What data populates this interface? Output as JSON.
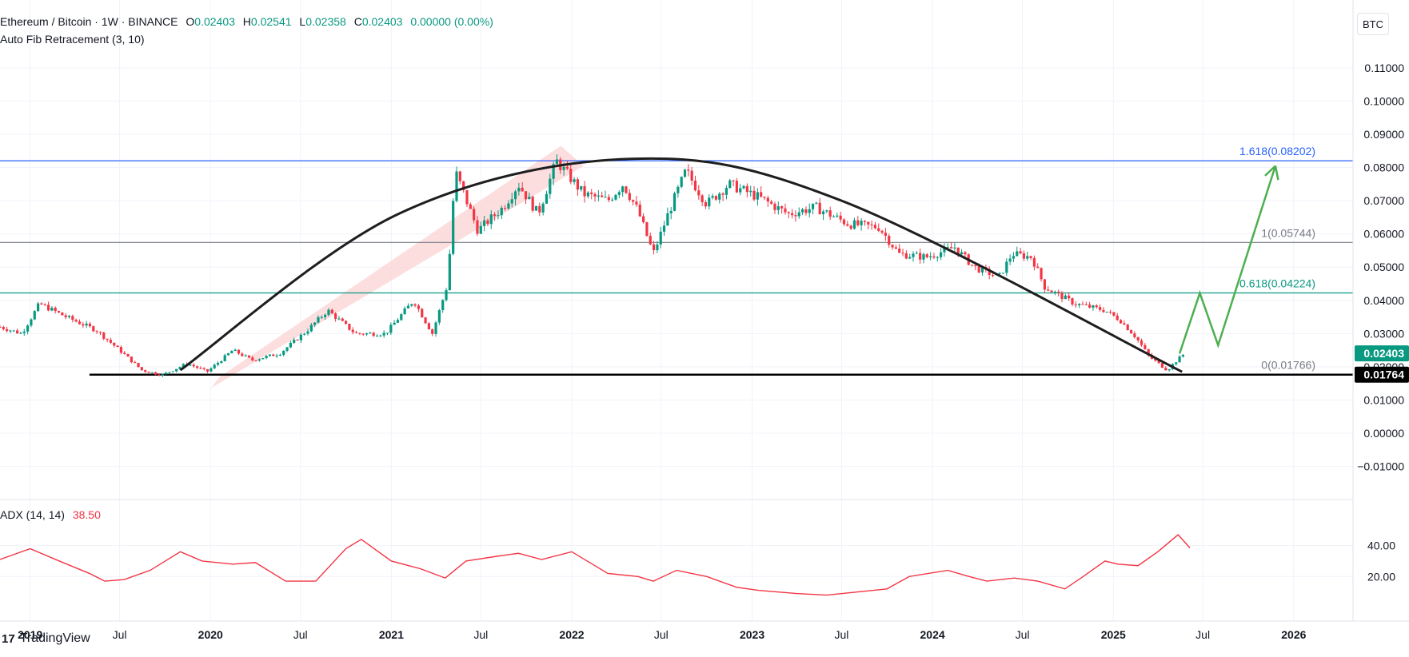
{
  "legend": {
    "symbol": "Ethereum / Bitcoin · 1W · BINANCE",
    "o_label": "O",
    "o_value": "0.02403",
    "h_label": "H",
    "h_value": "0.02541",
    "l_label": "L",
    "l_value": "0.02358",
    "c_label": "C",
    "c_value": "0.02403",
    "change": "0.00000 (0.00%)",
    "indicator": "Auto Fib Retracement (3, 10)"
  },
  "adx_legend": {
    "name": "ADX (14, 14)",
    "value": "38.50"
  },
  "currency_button": "BTC",
  "brand": {
    "logo": "17",
    "name": "TradingView"
  },
  "colors": {
    "up": "#089981",
    "down": "#f23645",
    "fib_1618": "#2962ff",
    "fib_1": "#787b86",
    "fib_0618": "#089981",
    "projection": "#4caf50",
    "adx": "#f23645",
    "channel": "#fbd3d3"
  },
  "chart_data": [
    {
      "type": "candlestick",
      "title": "Ethereum / Bitcoin · 1W · BINANCE",
      "y_axis_ticks": [
        "0.11000",
        "0.10000",
        "0.09000",
        "0.08000",
        "0.07000",
        "0.06000",
        "0.05000",
        "0.04000",
        "0.03000",
        "0.02000",
        "0.01000",
        "0.00000",
        "−0.01000"
      ],
      "ylim": [
        -0.0125,
        0.1155
      ],
      "x_axis_ticks": [
        "2019",
        "Jul",
        "2020",
        "Jul",
        "2021",
        "Jul",
        "2022",
        "Jul",
        "2023",
        "Jul",
        "2024",
        "Jul",
        "2025",
        "Jul",
        "2026"
      ],
      "xlim": [
        "2018-11-01",
        "2026-05-01"
      ],
      "price_series": [
        [
          "2018-11-01",
          0.032
        ],
        [
          "2018-12-15",
          0.03
        ],
        [
          "2019-01-20",
          0.039
        ],
        [
          "2019-03-15",
          0.035
        ],
        [
          "2019-05-15",
          0.031
        ],
        [
          "2019-07-01",
          0.025
        ],
        [
          "2019-08-15",
          0.019
        ],
        [
          "2019-09-25",
          0.0175
        ],
        [
          "2019-11-15",
          0.021
        ],
        [
          "2019-12-25",
          0.0185
        ],
        [
          "2020-02-15",
          0.025
        ],
        [
          "2020-03-25",
          0.022
        ],
        [
          "2020-05-20",
          0.024
        ],
        [
          "2020-07-15",
          0.031
        ],
        [
          "2020-08-25",
          0.037
        ],
        [
          "2020-10-20",
          0.03
        ],
        [
          "2020-12-20",
          0.03
        ],
        [
          "2021-02-15",
          0.04
        ],
        [
          "2021-03-25",
          0.03
        ],
        [
          "2021-04-25",
          0.045
        ],
        [
          "2021-05-10",
          0.079
        ],
        [
          "2021-06-25",
          0.061
        ],
        [
          "2021-08-15",
          0.068
        ],
        [
          "2021-09-15",
          0.075
        ],
        [
          "2021-10-25",
          0.066
        ],
        [
          "2021-12-01",
          0.082
        ],
        [
          "2022-01-25",
          0.072
        ],
        [
          "2022-03-15",
          0.07
        ],
        [
          "2022-04-15",
          0.075
        ],
        [
          "2022-05-15",
          0.067
        ],
        [
          "2022-06-15",
          0.054
        ],
        [
          "2022-07-15",
          0.066
        ],
        [
          "2022-08-20",
          0.079
        ],
        [
          "2022-10-01",
          0.069
        ],
        [
          "2022-11-15",
          0.075
        ],
        [
          "2023-01-15",
          0.071
        ],
        [
          "2023-03-15",
          0.066
        ],
        [
          "2023-05-10",
          0.068
        ],
        [
          "2023-07-15",
          0.063
        ],
        [
          "2023-09-15",
          0.062
        ],
        [
          "2023-10-25",
          0.054
        ],
        [
          "2023-12-20",
          0.053
        ],
        [
          "2024-02-15",
          0.056
        ],
        [
          "2024-03-25",
          0.05
        ],
        [
          "2024-05-15",
          0.047
        ],
        [
          "2024-06-10",
          0.054
        ],
        [
          "2024-07-20",
          0.053
        ],
        [
          "2024-08-15",
          0.044
        ],
        [
          "2024-10-15",
          0.039
        ],
        [
          "2024-12-15",
          0.037
        ],
        [
          "2025-01-15",
          0.034
        ],
        [
          "2025-02-15",
          0.029
        ],
        [
          "2025-03-15",
          0.023
        ],
        [
          "2025-04-20",
          0.019
        ],
        [
          "2025-05-10",
          0.022
        ],
        [
          "2025-05-25",
          0.024
        ]
      ],
      "last_price": "0.02403",
      "support_level": "0.01764",
      "fib_levels": [
        {
          "label": "1.618(0.08202)",
          "value": 0.08202
        },
        {
          "label": "1(0.05744)",
          "value": 0.05744
        },
        {
          "label": "0.618(0.04224)",
          "value": 0.04224
        },
        {
          "label": "0(0.01766)",
          "value": 0.01766
        }
      ],
      "arc_trendline": [
        [
          "2019-11-01",
          0.019
        ],
        [
          "2021-01-15",
          0.066
        ],
        [
          "2022-05-01",
          0.0826
        ],
        [
          "2023-07-01",
          0.07
        ],
        [
          "2025-05-20",
          0.0185
        ]
      ],
      "projection": [
        [
          "2025-05-15",
          0.024
        ],
        [
          "2025-06-25",
          0.0422
        ],
        [
          "2025-08-01",
          0.0265
        ],
        [
          "2025-11-25",
          0.0805
        ]
      ],
      "channel": [
        [
          "2020-01-01",
          0.0135
        ],
        [
          "2020-01-20",
          0.017
        ],
        [
          "2021-12-10",
          0.0865
        ],
        [
          "2022-01-25",
          0.0805
        ]
      ]
    },
    {
      "type": "line",
      "title": "ADX (14, 14)",
      "y_axis_ticks": [
        "40.00",
        "20.00"
      ],
      "ylim": [
        0,
        62
      ],
      "series": [
        {
          "name": "ADX (14, 14)",
          "points": [
            [
              "2018-11-01",
              31
            ],
            [
              "2019-01-01",
              38
            ],
            [
              "2019-03-01",
              30
            ],
            [
              "2019-05-01",
              22
            ],
            [
              "2019-06-01",
              17
            ],
            [
              "2019-07-10",
              18
            ],
            [
              "2019-09-01",
              24
            ],
            [
              "2019-11-01",
              36
            ],
            [
              "2019-12-15",
              30
            ],
            [
              "2020-02-15",
              28
            ],
            [
              "2020-04-01",
              29
            ],
            [
              "2020-06-01",
              17
            ],
            [
              "2020-08-01",
              17
            ],
            [
              "2020-10-01",
              38
            ],
            [
              "2020-11-01",
              44
            ],
            [
              "2021-01-01",
              30
            ],
            [
              "2021-03-01",
              25
            ],
            [
              "2021-04-20",
              19
            ],
            [
              "2021-06-01",
              30
            ],
            [
              "2021-08-01",
              33
            ],
            [
              "2021-09-15",
              35
            ],
            [
              "2021-11-01",
              31
            ],
            [
              "2022-01-01",
              36
            ],
            [
              "2022-03-15",
              22
            ],
            [
              "2022-05-15",
              20
            ],
            [
              "2022-06-15",
              17
            ],
            [
              "2022-08-01",
              24
            ],
            [
              "2022-10-01",
              20
            ],
            [
              "2022-12-01",
              13
            ],
            [
              "2023-01-15",
              11
            ],
            [
              "2023-04-01",
              9
            ],
            [
              "2023-06-01",
              8
            ],
            [
              "2023-08-01",
              10
            ],
            [
              "2023-10-01",
              12
            ],
            [
              "2023-11-15",
              20
            ],
            [
              "2024-02-01",
              24
            ],
            [
              "2024-03-15",
              20
            ],
            [
              "2024-04-20",
              17
            ],
            [
              "2024-06-15",
              19
            ],
            [
              "2024-08-01",
              17
            ],
            [
              "2024-09-25",
              12
            ],
            [
              "2024-11-01",
              20
            ],
            [
              "2024-12-15",
              30
            ],
            [
              "2025-01-10",
              28
            ],
            [
              "2025-02-20",
              27
            ],
            [
              "2025-04-01",
              36
            ],
            [
              "2025-05-12",
              47
            ],
            [
              "2025-06-05",
              38.5
            ]
          ]
        }
      ]
    }
  ]
}
